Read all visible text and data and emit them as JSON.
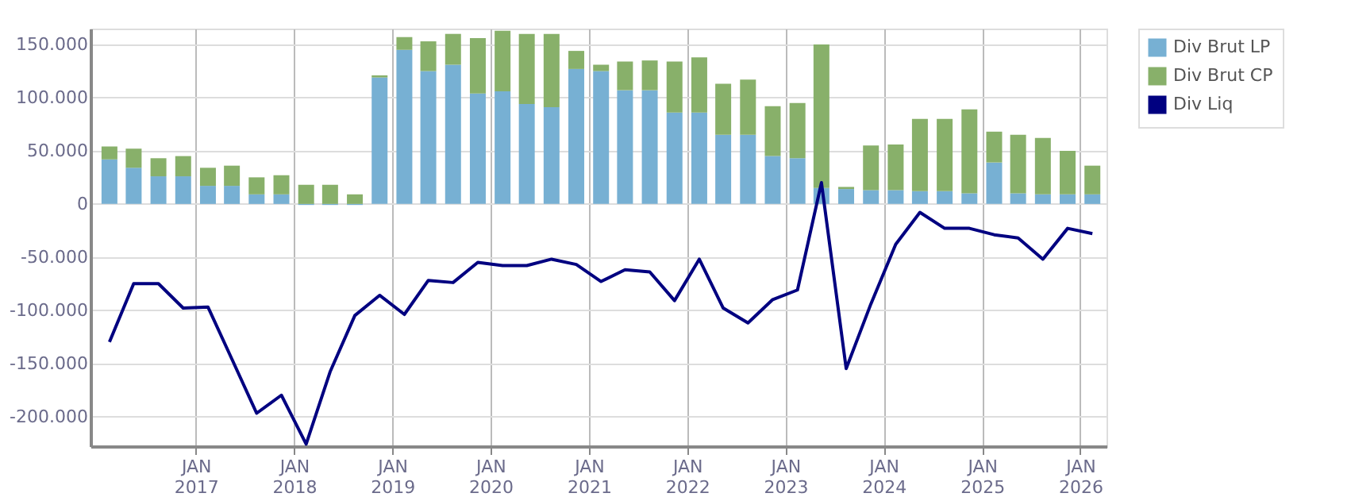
{
  "chart_data": {
    "type": "bar",
    "stacked": true,
    "x": [
      "2016-02-15",
      "2016-05-15",
      "2016-08-15",
      "2016-11-15",
      "2017-02-15",
      "2017-05-15",
      "2017-08-15",
      "2017-11-15",
      "2018-02-15",
      "2018-05-15",
      "2018-08-15",
      "2018-11-15",
      "2019-02-15",
      "2019-05-15",
      "2019-08-15",
      "2019-11-15",
      "2020-02-15",
      "2020-05-15",
      "2020-08-15",
      "2020-11-15",
      "2021-02-15",
      "2021-05-15",
      "2021-08-15",
      "2021-11-15",
      "2022-02-15",
      "2022-05-15",
      "2022-08-15",
      "2022-11-15",
      "2023-02-15",
      "2023-05-15",
      "2023-08-15",
      "2023-11-15",
      "2024-02-15",
      "2024-05-15",
      "2024-08-15",
      "2024-11-15",
      "2025-02-15",
      "2025-05-15",
      "2025-08-15",
      "2025-11-15",
      "2026-02-15"
    ],
    "series": [
      {
        "name": "Div Brut LP",
        "color": "#77b0d3",
        "values": [
          42000,
          34000,
          26000,
          26000,
          17000,
          17000,
          9000,
          9000,
          -1000,
          -1000,
          -1000,
          119000,
          145000,
          125000,
          131000,
          104000,
          106000,
          94000,
          91000,
          127000,
          125000,
          107000,
          107000,
          86000,
          86000,
          65000,
          65000,
          45000,
          43000,
          15000,
          14000,
          13000,
          13000,
          12000,
          12000,
          10000,
          39000,
          10000,
          9000,
          9000,
          9000
        ]
      },
      {
        "name": "Div Brut CP",
        "color": "#88b06a",
        "values": [
          12000,
          18000,
          17000,
          19000,
          17000,
          19000,
          16000,
          18000,
          18000,
          18000,
          9000,
          2000,
          12000,
          28000,
          29000,
          52000,
          57000,
          66000,
          69000,
          17000,
          6000,
          27000,
          28000,
          48000,
          52000,
          48000,
          52000,
          47000,
          52000,
          135000,
          2000,
          42000,
          43000,
          68000,
          68000,
          79000,
          29000,
          55000,
          53000,
          41000,
          27000
        ]
      },
      {
        "name": "Div Liq",
        "type": "line",
        "color": "#000080",
        "values": [
          -130000,
          -75000,
          -75000,
          -98000,
          -97000,
          -146000,
          -197000,
          -180000,
          -226000,
          -158000,
          -105000,
          -86000,
          -104000,
          -72000,
          -74000,
          -55000,
          -58000,
          -58000,
          -52000,
          -57000,
          -73000,
          -62000,
          -64000,
          -91000,
          -52000,
          -98000,
          -112000,
          -90000,
          -81000,
          20000,
          -155000,
          -94000,
          -38000,
          -8000,
          -23000,
          -23000,
          -29000,
          -32000,
          -52000,
          -23000,
          -28000
        ]
      }
    ],
    "xlim": [
      "2016-01-05",
      "2026-03-10"
    ],
    "xticks": [
      {
        "value": "2017-01-01",
        "label": "JAN 2017"
      },
      {
        "value": "2018-01-01",
        "label": "JAN 2018"
      },
      {
        "value": "2019-01-01",
        "label": "JAN 2019"
      },
      {
        "value": "2020-01-01",
        "label": "JAN 2020"
      },
      {
        "value": "2021-01-01",
        "label": "JAN 2021"
      },
      {
        "value": "2022-01-01",
        "label": "JAN 2022"
      },
      {
        "value": "2023-01-01",
        "label": "JAN 2023"
      },
      {
        "value": "2024-01-01",
        "label": "JAN 2024"
      },
      {
        "value": "2025-01-01",
        "label": "JAN 2025"
      },
      {
        "value": "2026-01-01",
        "label": "JAN 2026"
      }
    ],
    "ylim": [
      -228000,
      165000
    ],
    "yticks": [
      {
        "value": -200000,
        "label": "-200.000"
      },
      {
        "value": -150000,
        "label": "-150.000"
      },
      {
        "value": -100000,
        "label": "-100.000"
      },
      {
        "value": -50000,
        "label": "-50.000"
      },
      0,
      {
        "value": 50000,
        "label": "50.000"
      },
      {
        "value": 100000,
        "label": "100.000"
      },
      {
        "value": 150000,
        "label": "150.000"
      }
    ],
    "grid": true,
    "legend": "top right"
  }
}
